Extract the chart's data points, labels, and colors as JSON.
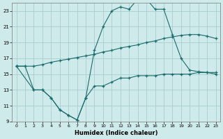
{
  "xlabel": "Humidex (Indice chaleur)",
  "background_color": "#ceeaea",
  "grid_color": "#a8cece",
  "line_color": "#1a6b6b",
  "xlim": [
    -0.5,
    23.5
  ],
  "ylim": [
    9,
    24
  ],
  "xticks": [
    0,
    1,
    2,
    3,
    4,
    5,
    6,
    7,
    8,
    9,
    10,
    11,
    12,
    13,
    14,
    15,
    16,
    17,
    18,
    19,
    20,
    21,
    22,
    23
  ],
  "yticks": [
    9,
    11,
    13,
    15,
    17,
    19,
    21,
    23
  ],
  "line1_x": [
    0,
    1,
    2,
    3,
    4,
    5,
    6,
    7,
    8,
    9,
    10,
    11,
    12,
    13,
    14,
    15,
    16,
    17,
    18,
    19,
    20,
    21,
    22,
    23
  ],
  "line1_y": [
    16.0,
    16.0,
    13.0,
    13.0,
    12.0,
    10.5,
    9.8,
    9.2,
    12.0,
    13.5,
    13.5,
    14.0,
    14.5,
    14.5,
    14.8,
    14.8,
    14.8,
    15.0,
    15.0,
    15.0,
    15.0,
    15.2,
    15.2,
    15.2
  ],
  "line2_x": [
    0,
    1,
    2,
    3,
    4,
    5,
    6,
    7,
    8,
    9,
    10,
    11,
    12,
    13,
    14,
    15,
    16,
    17,
    18,
    19,
    20,
    21,
    22,
    23
  ],
  "line2_y": [
    16.0,
    16.0,
    16.0,
    16.2,
    16.5,
    16.7,
    16.9,
    17.1,
    17.3,
    17.5,
    17.8,
    18.0,
    18.3,
    18.5,
    18.7,
    19.0,
    19.2,
    19.5,
    19.7,
    19.9,
    20.0,
    20.0,
    19.8,
    19.5
  ],
  "line3_x": [
    0,
    2,
    3,
    4,
    5,
    6,
    7,
    8,
    9,
    10,
    11,
    12,
    13,
    14,
    15,
    16,
    17,
    18,
    19,
    20,
    21,
    22,
    23
  ],
  "line3_y": [
    16.0,
    13.0,
    13.0,
    12.0,
    10.5,
    9.8,
    9.2,
    12.0,
    18.0,
    21.0,
    23.0,
    23.5,
    23.2,
    24.5,
    24.5,
    23.2,
    23.2,
    20.0,
    17.0,
    15.5,
    15.3,
    15.2,
    15.0
  ]
}
